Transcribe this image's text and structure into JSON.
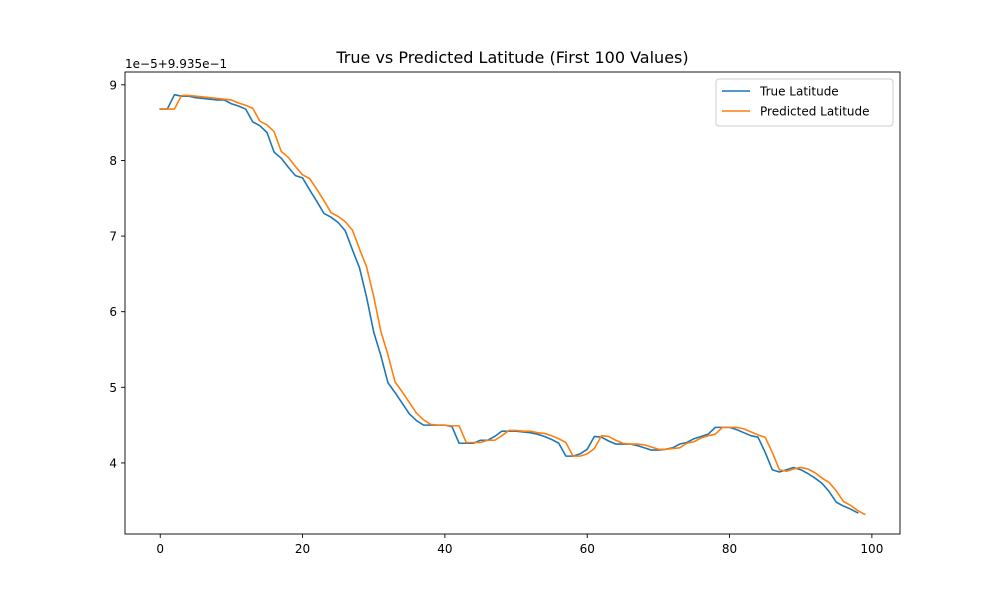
{
  "chart_data": {
    "type": "line",
    "title": "True vs Predicted Latitude (First 100 Values)",
    "xlabel": "",
    "ylabel": "",
    "y_offset_label": "1e−5+9.935e−1",
    "xlim": [
      -4.95,
      103.95
    ],
    "ylim": [
      3.06,
      9.17
    ],
    "x_ticks": [
      0,
      20,
      40,
      60,
      80,
      100
    ],
    "x_tick_labels": [
      "0",
      "20",
      "40",
      "60",
      "80",
      "100"
    ],
    "y_ticks": [
      4,
      5,
      6,
      7,
      8,
      9
    ],
    "y_tick_labels": [
      "4",
      "5",
      "6",
      "7",
      "8",
      "9"
    ],
    "grid": false,
    "legend_position": "top-right",
    "series": [
      {
        "name": "True Latitude",
        "color": "#1f77b4",
        "x": [
          0,
          1,
          2,
          3,
          4,
          5,
          6,
          7,
          8,
          9,
          10,
          11,
          12,
          13,
          14,
          15,
          16,
          17,
          18,
          19,
          20,
          21,
          22,
          23,
          24,
          25,
          26,
          27,
          28,
          29,
          30,
          31,
          32,
          33,
          34,
          35,
          36,
          37,
          38,
          39,
          40,
          41,
          42,
          43,
          44,
          45,
          46,
          47,
          48,
          49,
          50,
          51,
          52,
          53,
          54,
          55,
          56,
          57,
          58,
          59,
          60,
          61,
          62,
          63,
          64,
          65,
          66,
          67,
          68,
          69,
          70,
          71,
          72,
          73,
          74,
          75,
          76,
          77,
          78,
          79,
          80,
          81,
          82,
          83,
          84,
          85,
          86,
          87,
          88,
          89,
          90,
          91,
          92,
          93,
          94,
          95,
          96,
          97,
          98
        ],
        "values": [
          8.68,
          8.68,
          8.87,
          8.85,
          8.85,
          8.83,
          8.82,
          8.81,
          8.8,
          8.8,
          8.75,
          8.72,
          8.68,
          8.51,
          8.46,
          8.37,
          8.11,
          8.03,
          7.91,
          7.8,
          7.77,
          7.61,
          7.46,
          7.3,
          7.25,
          7.18,
          7.07,
          6.82,
          6.58,
          6.19,
          5.73,
          5.42,
          5.06,
          4.93,
          4.79,
          4.65,
          4.56,
          4.5,
          4.5,
          4.5,
          4.5,
          4.48,
          4.26,
          4.26,
          4.26,
          4.3,
          4.3,
          4.35,
          4.42,
          4.42,
          4.42,
          4.41,
          4.4,
          4.38,
          4.35,
          4.31,
          4.26,
          4.09,
          4.09,
          4.12,
          4.18,
          4.35,
          4.34,
          4.29,
          4.25,
          4.25,
          4.25,
          4.23,
          4.2,
          4.17,
          4.17,
          4.18,
          4.2,
          4.25,
          4.27,
          4.32,
          4.35,
          4.38,
          4.47,
          4.47,
          4.47,
          4.44,
          4.4,
          4.36,
          4.34,
          4.14,
          3.91,
          3.88,
          3.91,
          3.94,
          3.91,
          3.86,
          3.8,
          3.73,
          3.62,
          3.48,
          3.43,
          3.39,
          3.34
        ]
      },
      {
        "name": "Predicted Latitude",
        "color": "#ff7f0e",
        "x": [
          0,
          1,
          2,
          3,
          4,
          5,
          6,
          7,
          8,
          9,
          10,
          11,
          12,
          13,
          14,
          15,
          16,
          17,
          18,
          19,
          20,
          21,
          22,
          23,
          24,
          25,
          26,
          27,
          28,
          29,
          30,
          31,
          32,
          33,
          34,
          35,
          36,
          37,
          38,
          39,
          40,
          41,
          42,
          43,
          44,
          45,
          46,
          47,
          48,
          49,
          50,
          51,
          52,
          53,
          54,
          55,
          56,
          57,
          58,
          59,
          60,
          61,
          62,
          63,
          64,
          65,
          66,
          67,
          68,
          69,
          70,
          71,
          72,
          73,
          74,
          75,
          76,
          77,
          78,
          79,
          80,
          81,
          82,
          83,
          84,
          85,
          86,
          87,
          88,
          89,
          90,
          91,
          92,
          93,
          94,
          95,
          96,
          97,
          98,
          99
        ],
        "values": [
          8.68,
          8.68,
          8.68,
          8.86,
          8.86,
          8.85,
          8.84,
          8.83,
          8.82,
          8.81,
          8.8,
          8.76,
          8.73,
          8.69,
          8.52,
          8.47,
          8.38,
          8.12,
          8.04,
          7.92,
          7.81,
          7.76,
          7.62,
          7.47,
          7.31,
          7.26,
          7.19,
          7.08,
          6.83,
          6.59,
          6.2,
          5.74,
          5.43,
          5.07,
          4.94,
          4.8,
          4.66,
          4.57,
          4.51,
          4.5,
          4.5,
          4.49,
          4.49,
          4.27,
          4.27,
          4.27,
          4.3,
          4.3,
          4.36,
          4.43,
          4.43,
          4.42,
          4.42,
          4.4,
          4.39,
          4.36,
          4.32,
          4.27,
          4.09,
          4.09,
          4.12,
          4.19,
          4.36,
          4.35,
          4.3,
          4.26,
          4.25,
          4.25,
          4.24,
          4.21,
          4.18,
          4.18,
          4.19,
          4.2,
          4.26,
          4.28,
          4.33,
          4.36,
          4.38,
          4.47,
          4.47,
          4.47,
          4.45,
          4.41,
          4.37,
          4.34,
          4.14,
          3.91,
          3.89,
          3.92,
          3.94,
          3.92,
          3.87,
          3.8,
          3.74,
          3.63,
          3.49,
          3.44,
          3.37,
          3.32
        ]
      }
    ]
  }
}
